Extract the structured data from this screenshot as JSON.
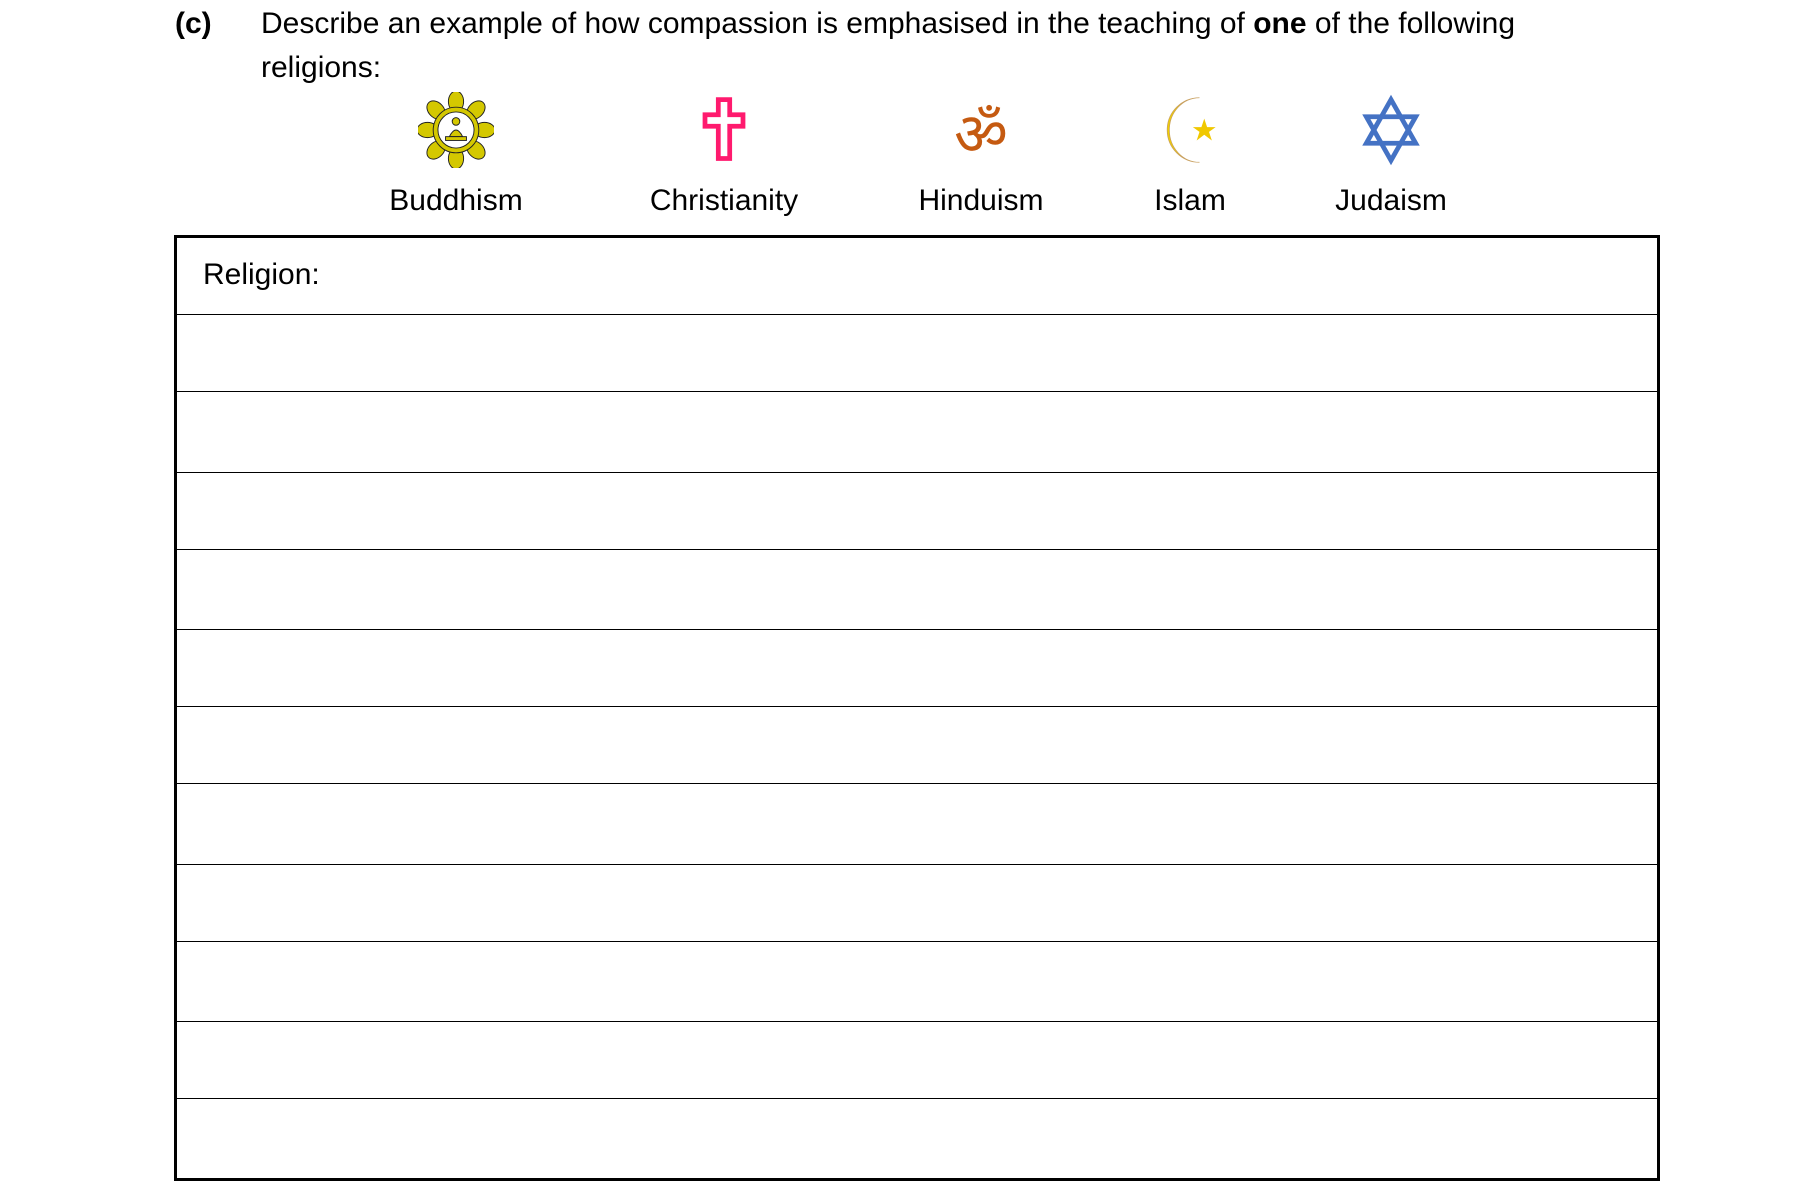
{
  "question": {
    "label": "(c)",
    "text_before": "Describe an example of how compassion is emphasised in the teaching of ",
    "text_bold": "one",
    "text_after": " of the following religions:"
  },
  "religions": [
    {
      "name": "Buddhism",
      "icon": "lotus-buddha-icon",
      "color": "#d4c800"
    },
    {
      "name": "Christianity",
      "icon": "cross-icon",
      "color": "#ff1a6e"
    },
    {
      "name": "Hinduism",
      "icon": "om-icon",
      "color": "#c55a11"
    },
    {
      "name": "Islam",
      "icon": "crescent-star-icon",
      "color": "#f0d000"
    },
    {
      "name": "Judaism",
      "icon": "star-of-david-icon",
      "color": "#4472c4"
    }
  ],
  "answer_box": {
    "religion_label": "Religion:",
    "answer_lines": 11
  }
}
